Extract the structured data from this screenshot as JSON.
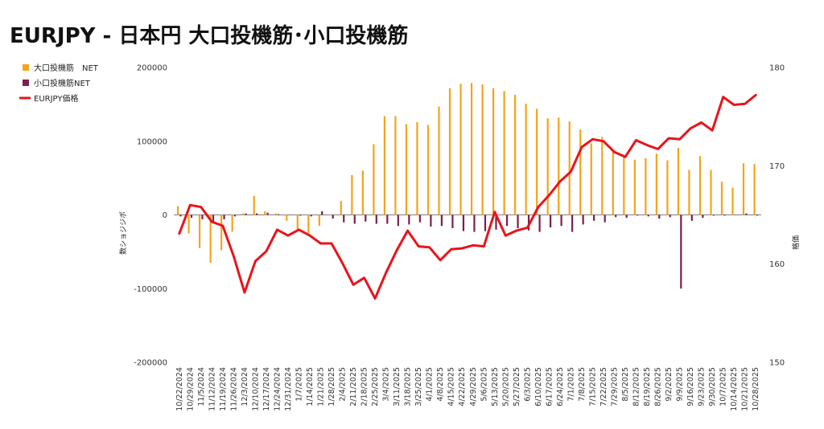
{
  "chart_data": {
    "type": "bar",
    "title": "EURJPY - 日本円 大口投機筋･小口投機筋",
    "ylabel_left": "数ショジジポ",
    "ylabel_right": "格価",
    "ylim_left": [
      -200000,
      200000
    ],
    "ylim_right": [
      150,
      180
    ],
    "yticks_left": [
      "200000",
      "100000",
      "0",
      "-100000",
      "-200000"
    ],
    "yticks_right": [
      "180",
      "170",
      "160",
      "150"
    ],
    "legend_position": "top-left",
    "grid": false,
    "categories": [
      "10/22/2024",
      "10/29/2024",
      "11/5/2024",
      "11/12/2024",
      "11/19/2024",
      "11/26/2024",
      "12/3/2024",
      "12/10/2024",
      "12/17/2024",
      "12/24/2024",
      "12/31/2024",
      "1/7/2025",
      "1/14/2025",
      "1/21/2025",
      "1/28/2025",
      "2/4/2025",
      "2/11/2025",
      "2/18/2025",
      "2/25/2025",
      "3/4/2025",
      "3/11/2025",
      "3/18/2025",
      "3/25/2025",
      "4/1/2025",
      "4/8/2025",
      "4/15/2025",
      "4/22/2025",
      "4/29/2025",
      "5/6/2025",
      "5/13/2025",
      "5/20/2025",
      "5/27/2025",
      "6/3/2025",
      "6/10/2025",
      "6/17/2025",
      "6/24/2025",
      "7/1/2025",
      "7/8/2025",
      "7/15/2025",
      "7/22/2025",
      "7/29/2025",
      "8/5/2025",
      "8/12/2025",
      "8/19/2025",
      "8/26/2025",
      "9/2/2025",
      "9/9/2025",
      "9/16/2025",
      "9/23/2025",
      "9/30/2025",
      "10/7/2025",
      "10/14/2025",
      "10/21/2025",
      "10/28/2025"
    ],
    "series": [
      {
        "name": "大口投機筋　NET",
        "type": "bar",
        "color": "#f5a31a",
        "axis": "left",
        "values": [
          12000,
          -25000,
          -45000,
          -65000,
          -48000,
          -23000,
          2000,
          26000,
          5000,
          2000,
          -8000,
          -20000,
          -25000,
          -15000,
          0,
          19000,
          54000,
          60000,
          96000,
          134000,
          134000,
          123000,
          126000,
          122000,
          147000,
          172000,
          178000,
          179000,
          177000,
          172000,
          168000,
          163000,
          151000,
          144000,
          131000,
          132000,
          127000,
          116000,
          97000,
          106000,
          87000,
          78000,
          75000,
          77000,
          83000,
          74000,
          91000,
          61000,
          80000,
          61000,
          45000,
          37000,
          70000,
          69000
        ]
      },
      {
        "name": "小口投機筋NET",
        "type": "bar",
        "color": "#7a1f4e",
        "axis": "left",
        "values": [
          -2000,
          -4000,
          -6000,
          -10000,
          -6000,
          -2000,
          2000,
          2000,
          3000,
          1000,
          0,
          -1000,
          -2000,
          5000,
          -5000,
          -10000,
          -12000,
          -9000,
          -12000,
          -12000,
          -15000,
          -13000,
          -10000,
          -16000,
          -15000,
          -18000,
          -22000,
          -23000,
          -22000,
          -20000,
          -15000,
          -18000,
          -21000,
          -23000,
          -17000,
          -15000,
          -23000,
          -13000,
          -8000,
          -10000,
          -3000,
          -4000,
          -1000,
          -2000,
          -5000,
          -3000,
          -100000,
          -8000,
          -4000,
          -1000,
          -1000,
          0,
          2000,
          -1000
        ]
      },
      {
        "name": "EURJPY価格",
        "type": "line",
        "color": "#e8141b",
        "axis": "right",
        "values": [
          163.1,
          166.0,
          165.8,
          164.3,
          163.9,
          160.8,
          157.1,
          160.3,
          161.3,
          163.5,
          162.9,
          163.5,
          162.9,
          162.1,
          162.1,
          160.1,
          157.9,
          158.6,
          156.5,
          159.1,
          161.4,
          163.4,
          161.8,
          161.7,
          160.4,
          161.5,
          161.6,
          161.9,
          161.8,
          165.3,
          162.9,
          163.4,
          163.7,
          165.8,
          167.0,
          168.4,
          169.4,
          171.9,
          172.7,
          172.5,
          171.4,
          170.9,
          172.6,
          172.1,
          171.7,
          172.8,
          172.7,
          173.8,
          174.4,
          173.6,
          177.0,
          176.2,
          176.3,
          177.2
        ]
      }
    ]
  }
}
